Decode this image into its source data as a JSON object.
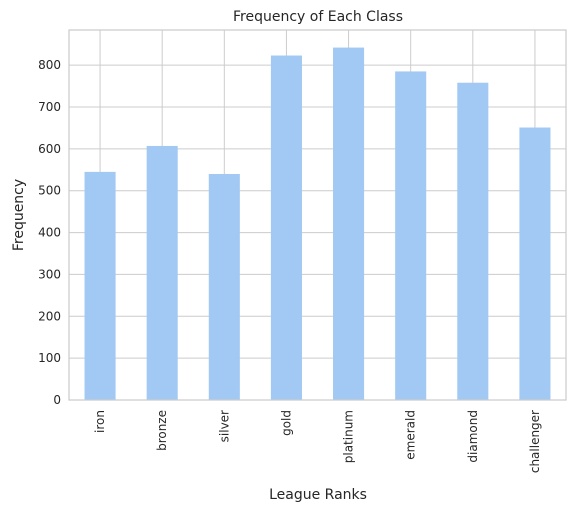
{
  "chart_data": {
    "type": "bar",
    "title": "Frequency of Each Class",
    "xlabel": "League Ranks",
    "ylabel": "Frequency",
    "categories": [
      "iron",
      "bronze",
      "silver",
      "gold",
      "platinum",
      "emerald",
      "diamond",
      "challenger"
    ],
    "values": [
      545,
      607,
      540,
      823,
      842,
      785,
      758,
      651
    ],
    "ylim": [
      0,
      884
    ],
    "yticks": [
      0,
      100,
      200,
      300,
      400,
      500,
      600,
      700,
      800
    ],
    "grid": true,
    "bar_color": "#a1c9f4",
    "grid_color": "#cccccc"
  }
}
